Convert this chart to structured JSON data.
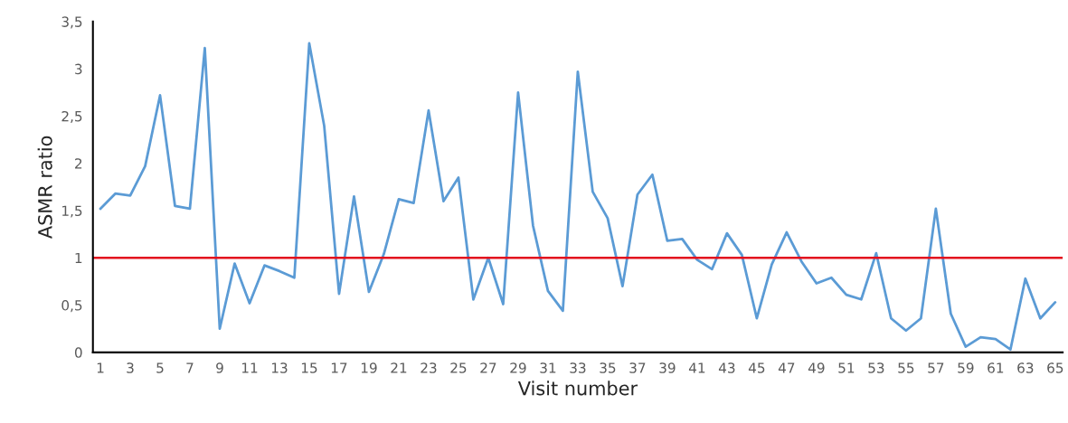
{
  "chart_data": {
    "type": "line",
    "xlabel": "Visit number",
    "ylabel": "ASMR ratio",
    "x": [
      1,
      2,
      3,
      4,
      5,
      6,
      7,
      8,
      9,
      10,
      11,
      12,
      13,
      14,
      15,
      16,
      17,
      18,
      19,
      20,
      21,
      22,
      23,
      24,
      25,
      26,
      27,
      28,
      29,
      30,
      31,
      32,
      33,
      34,
      35,
      36,
      37,
      38,
      39,
      40,
      41,
      42,
      43,
      44,
      45,
      46,
      47,
      48,
      49,
      50,
      51,
      52,
      53,
      54,
      55,
      56,
      57,
      58,
      59,
      60,
      61,
      62,
      63,
      64,
      65
    ],
    "series": [
      {
        "color": "#5b9bd5",
        "values": [
          1.52,
          1.68,
          1.66,
          1.97,
          2.72,
          1.55,
          1.52,
          3.22,
          0.25,
          0.94,
          0.52,
          0.92,
          0.86,
          0.79,
          3.27,
          2.4,
          0.62,
          1.65,
          0.64,
          1.04,
          1.62,
          1.58,
          2.56,
          1.6,
          1.85,
          0.56,
          1.0,
          0.51,
          2.75,
          1.34,
          0.65,
          0.44,
          2.97,
          1.7,
          1.42,
          0.7,
          1.67,
          1.88,
          1.18,
          1.2,
          0.98,
          0.88,
          1.26,
          1.03,
          0.36,
          0.93,
          1.27,
          0.96,
          0.73,
          0.79,
          0.61,
          0.56,
          1.05,
          0.36,
          0.23,
          0.36,
          1.52,
          0.41,
          0.06,
          0.16,
          0.14,
          0.03,
          0.78,
          0.36,
          0.53
        ]
      }
    ],
    "xlim": [
      0.5,
      65.5
    ],
    "xticks": [
      1,
      3,
      5,
      7,
      9,
      11,
      13,
      15,
      17,
      19,
      21,
      23,
      25,
      27,
      29,
      31,
      33,
      35,
      37,
      39,
      41,
      43,
      45,
      47,
      49,
      51,
      53,
      55,
      57,
      59,
      61,
      63,
      65
    ],
    "ylim": [
      0,
      3.5
    ],
    "yticks": [
      0,
      {
        "value": 0.5,
        "label": "0,5"
      },
      1,
      {
        "value": 1.5,
        "label": "1,5"
      },
      2,
      {
        "value": 2.5,
        "label": "2,5"
      },
      3,
      {
        "value": 3.5,
        "label": "3,5"
      }
    ],
    "ref_lines": [
      {
        "axis": "y",
        "value": 1,
        "color": "#e3101e"
      }
    ],
    "grid": false,
    "marker": "none",
    "line_style": "solid"
  }
}
